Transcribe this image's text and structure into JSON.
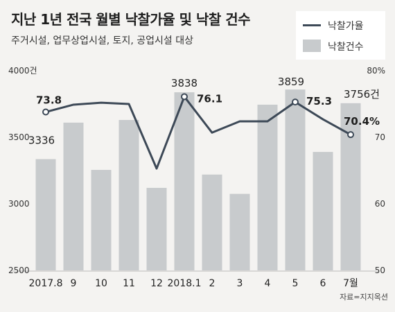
{
  "title": "지난 1년 전국 월별 낙찰가율 및 낙찰 건수",
  "subtitle": "주거시설, 업무상업시설, 토지, 공업시설 대상",
  "legend": {
    "line_label": "낙찰가율",
    "bar_label": "낙찰건수"
  },
  "source": "자료=지지옥션",
  "colors": {
    "bar": "#c8cbcd",
    "line": "#3d4957",
    "background": "#f4f3f1"
  },
  "chart_data": {
    "type": "bar",
    "categories": [
      "2017.8",
      "9",
      "10",
      "11",
      "12",
      "2018.1",
      "2",
      "3",
      "4",
      "5",
      "6",
      "7월"
    ],
    "series": [
      {
        "name": "낙찰건수",
        "type": "bar",
        "axis": "left",
        "values": [
          3336,
          3610,
          3255,
          3630,
          3120,
          3838,
          3220,
          3075,
          3745,
          3859,
          3390,
          3756
        ]
      },
      {
        "name": "낙찰가율",
        "type": "line",
        "axis": "right",
        "values": [
          73.8,
          74.9,
          75.2,
          75.0,
          65.3,
          76.1,
          70.7,
          72.4,
          72.4,
          75.3,
          72.7,
          70.4
        ]
      }
    ],
    "y_left": {
      "ticks": [
        "4000건",
        "3500",
        "3000",
        "2500"
      ],
      "tick_values": [
        4000,
        3500,
        3000,
        2500
      ],
      "range": [
        2500,
        4000
      ]
    },
    "y_right": {
      "ticks": [
        "80%",
        "70",
        "60",
        "50"
      ],
      "tick_values": [
        80,
        70,
        60,
        50
      ],
      "range": [
        50,
        80
      ]
    },
    "bar_labels": [
      {
        "index": 0,
        "text": "3336"
      },
      {
        "index": 5,
        "text": "3838"
      },
      {
        "index": 9,
        "text": "3859"
      },
      {
        "index": 11,
        "text": "3756건"
      }
    ],
    "line_labels": [
      {
        "index": 0,
        "text": "73.8"
      },
      {
        "index": 5,
        "text": "76.1"
      },
      {
        "index": 9,
        "text": "75.3"
      },
      {
        "index": 11,
        "text": "70.4%"
      }
    ],
    "grid": false,
    "legend_position": "top-right"
  }
}
